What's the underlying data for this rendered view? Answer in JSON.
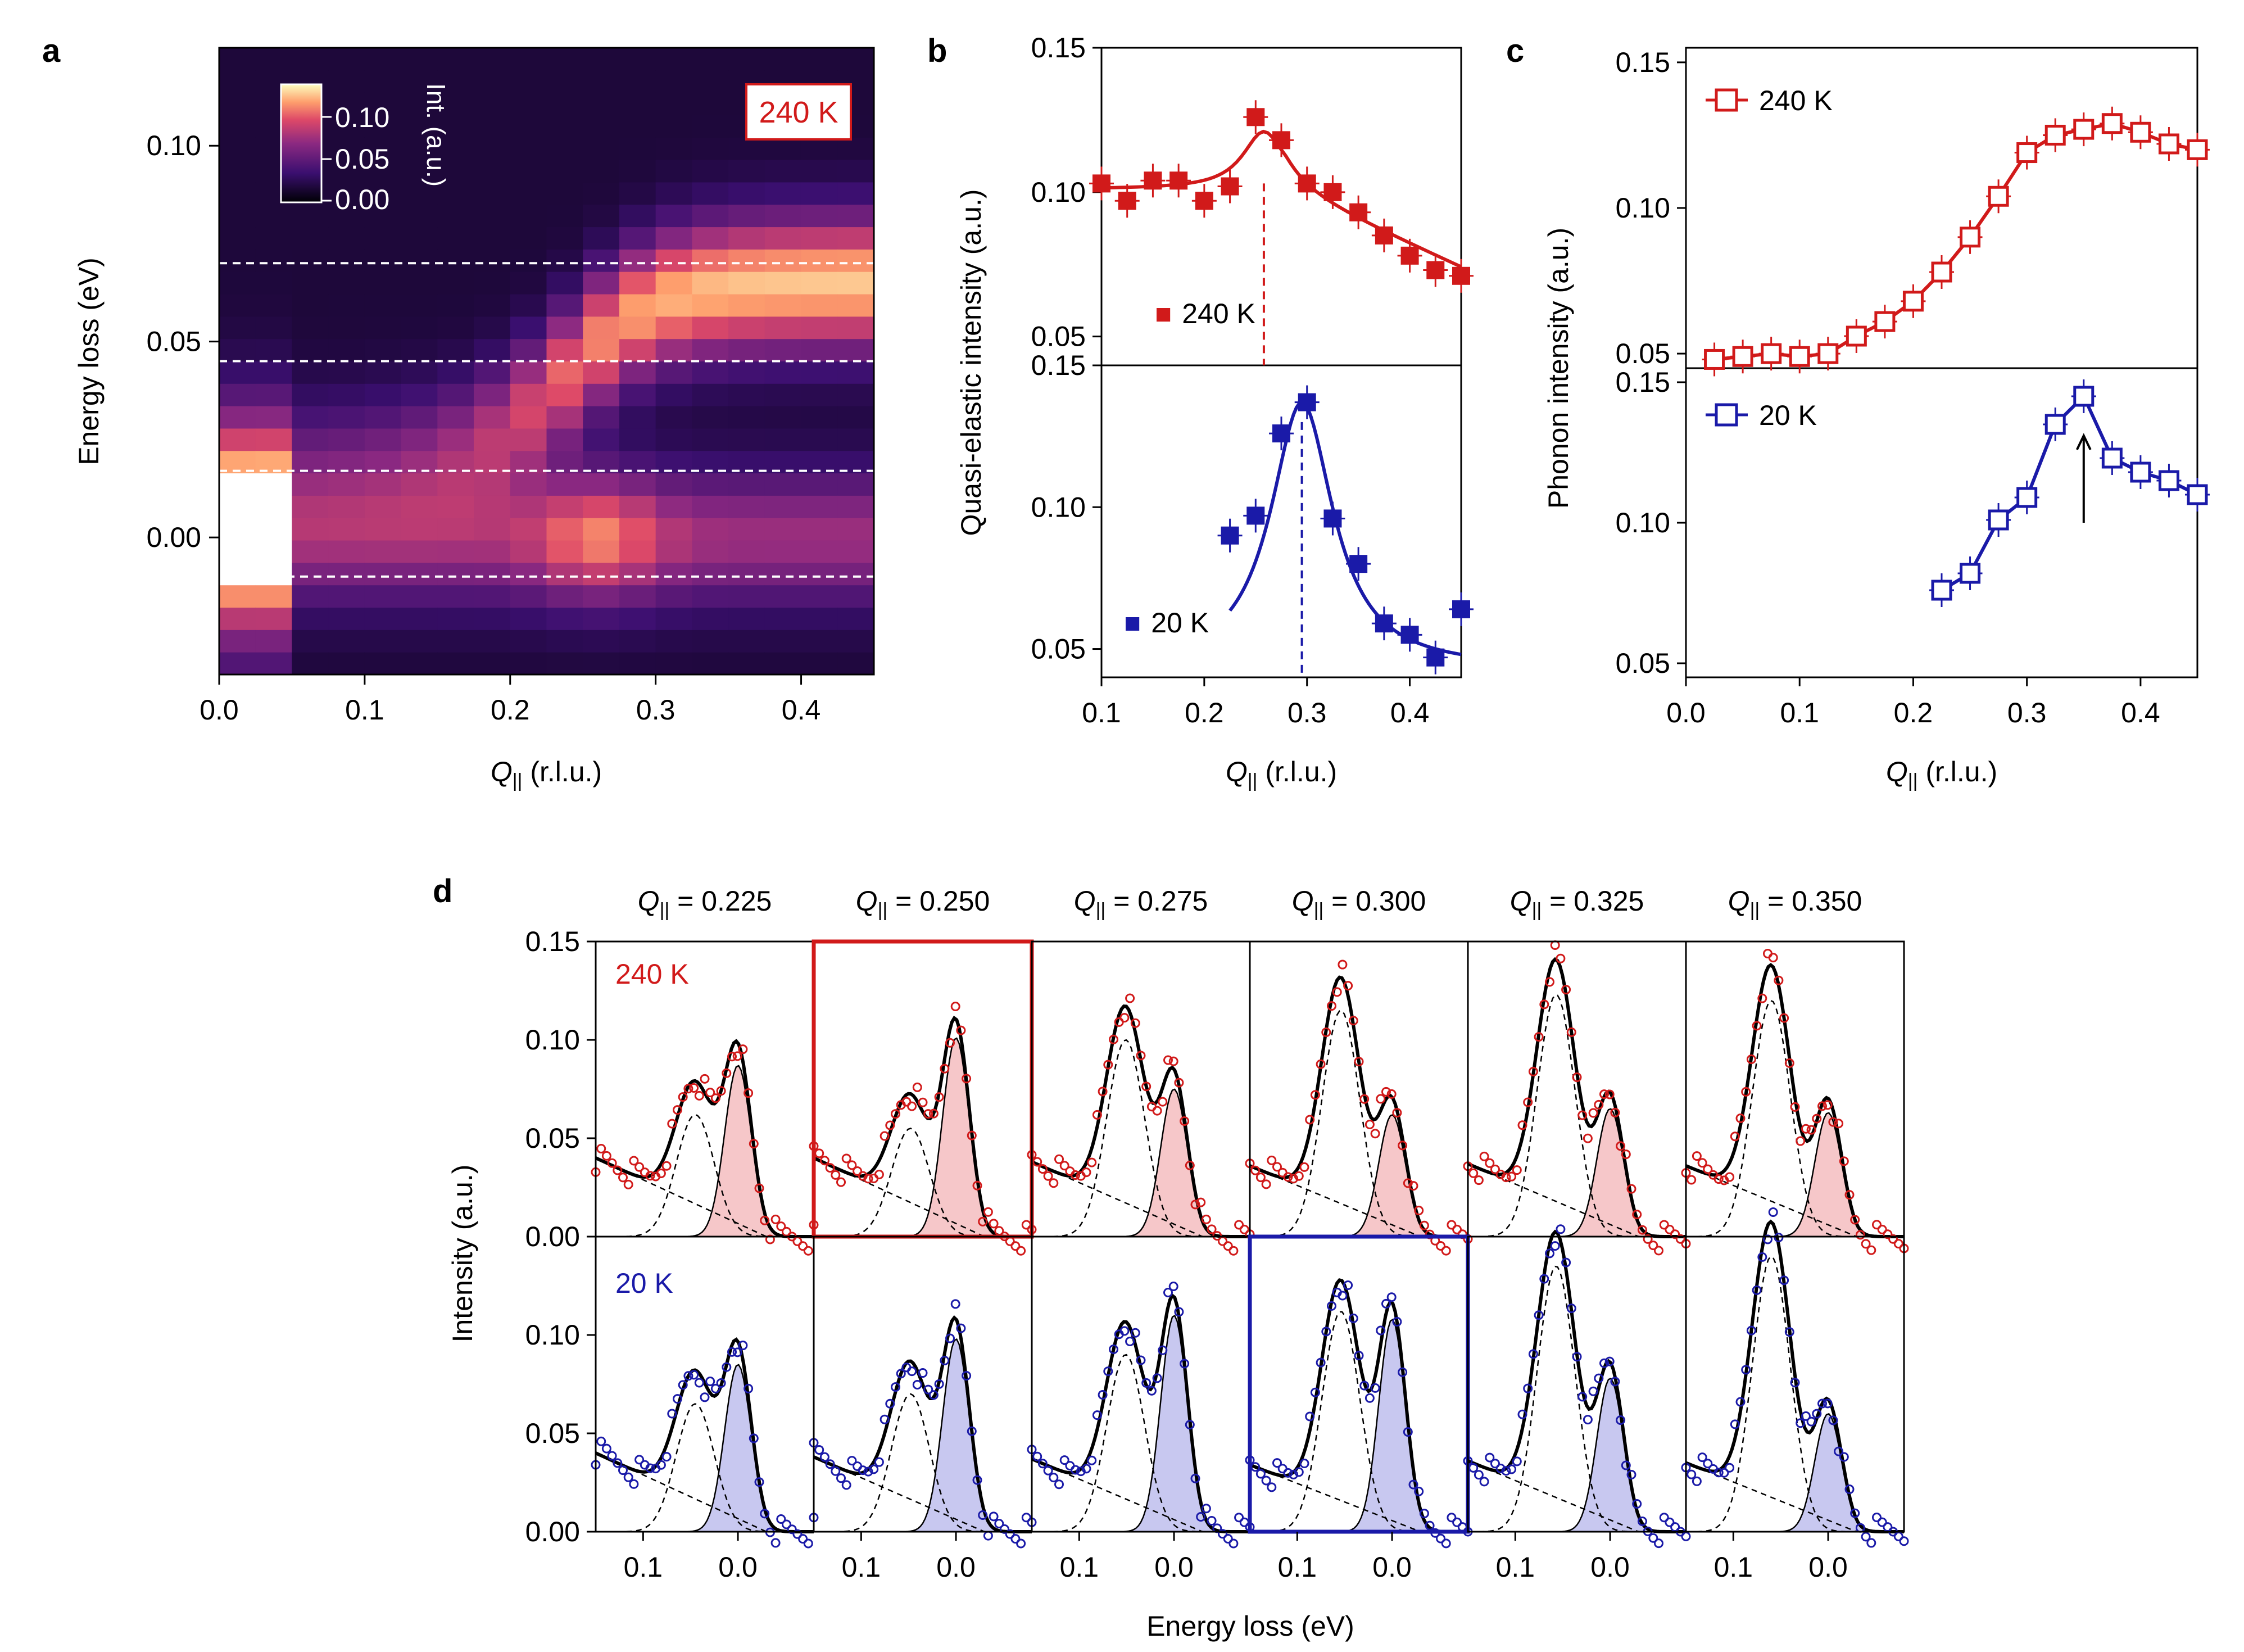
{
  "panel_labels": {
    "a": "a",
    "b": "b",
    "c": "c",
    "d": "d"
  },
  "colors": {
    "red": "#d11a1a",
    "blue": "#1a1aa8",
    "red_fill": "#f6c7c9",
    "blue_fill": "#c8c8f0",
    "black": "#000000",
    "dash_white": "#ffffff"
  },
  "panel_a": {
    "ylabel": "Energy loss (eV)",
    "xlabel_prefix": "Q",
    "xlabel_sub": "||",
    "xlabel_suffix": " (r.l.u.)",
    "badge": "240 K",
    "colorbar_label": "Int. (a.u.)",
    "colorbar_ticks": [
      "0.10",
      "0.05",
      "0.00"
    ],
    "xticks": [
      "0.0",
      "0.1",
      "0.2",
      "0.3",
      "0.4"
    ],
    "yticks": [
      "0.10",
      "0.05",
      "0.00"
    ],
    "dashed_energies": [
      0.07,
      0.045,
      0.017,
      -0.01
    ]
  },
  "panel_b": {
    "ylabel": "Quasi-elastic intensity (a.u.)",
    "xlabel_prefix": "Q",
    "xlabel_sub": "||",
    "xlabel_suffix": " (r.l.u.)",
    "legend_top": "240 K",
    "legend_bottom": "20 K",
    "xticks": [
      "0.1",
      "0.2",
      "0.3",
      "0.4"
    ],
    "yticks_top": [
      "0.15",
      "0.10",
      "0.05"
    ],
    "yticks_bottom": [
      "0.15",
      "0.10",
      "0.05"
    ]
  },
  "panel_c": {
    "ylabel": "Phonon intensity (a.u.)",
    "xlabel_prefix": "Q",
    "xlabel_sub": "||",
    "xlabel_suffix": " (r.l.u.)",
    "legend_top": "240 K",
    "legend_bottom": "20 K",
    "xticks": [
      "0.0",
      "0.1",
      "0.2",
      "0.3",
      "0.4"
    ],
    "yticks_top": [
      "0.15",
      "0.10",
      "0.05"
    ],
    "yticks_bottom": [
      "0.15",
      "0.10",
      "0.05"
    ]
  },
  "panel_d": {
    "ylabel": "Intensity (a.u.)",
    "xlabel": "Energy loss (eV)",
    "q_prefix": "Q",
    "q_sub": "||",
    "q_values": [
      " = 0.225",
      " = 0.250",
      " = 0.275",
      " = 0.300",
      " = 0.325",
      " = 0.350"
    ],
    "row_labels": [
      "240 K",
      "20 K"
    ],
    "yticks": [
      "0.15",
      "0.10",
      "0.05",
      "0.00"
    ],
    "yticks_lower": [
      "0.10",
      "0.05",
      "0.00"
    ],
    "xticks": [
      "0.1",
      "0.0"
    ]
  },
  "chart_data": [
    {
      "type": "heatmap",
      "title": "a",
      "xlabel": "Q|| (r.l.u.)",
      "ylabel": "Energy loss (eV)",
      "xlim": [
        0.0,
        0.45
      ],
      "ylim": [
        -0.035,
        0.125
      ],
      "colorbar_range": [
        0.0,
        0.12
      ],
      "annotation": "240 K"
    },
    {
      "type": "scatter",
      "title": "b",
      "xlabel": "Q|| (r.l.u.)",
      "ylabel": "Quasi-elastic intensity (a.u.)",
      "xlim": [
        0.1,
        0.45
      ],
      "series": [
        {
          "name": "240 K",
          "ylim": [
            0.04,
            0.15
          ],
          "x": [
            0.1,
            0.125,
            0.15,
            0.175,
            0.2,
            0.225,
            0.25,
            0.275,
            0.3,
            0.325,
            0.35,
            0.375,
            0.4,
            0.425,
            0.45
          ],
          "y": [
            0.103,
            0.097,
            0.104,
            0.104,
            0.097,
            0.102,
            0.126,
            0.118,
            0.103,
            0.1,
            0.093,
            0.085,
            0.078,
            0.073,
            0.071
          ],
          "peak_marker": 0.258
        },
        {
          "name": "20 K",
          "ylim": [
            0.04,
            0.15
          ],
          "x": [
            0.225,
            0.25,
            0.275,
            0.3,
            0.325,
            0.35,
            0.375,
            0.4,
            0.425,
            0.45
          ],
          "y": [
            0.09,
            0.097,
            0.126,
            0.137,
            0.096,
            0.08,
            0.059,
            0.055,
            0.047,
            0.064
          ],
          "peak_marker": 0.295
        }
      ]
    },
    {
      "type": "line",
      "title": "c",
      "xlabel": "Q|| (r.l.u.)",
      "ylabel": "Phonon intensity (a.u.)",
      "xlim": [
        0.0,
        0.45
      ],
      "series": [
        {
          "name": "240 K",
          "ylim": [
            0.045,
            0.155
          ],
          "x": [
            0.025,
            0.05,
            0.075,
            0.1,
            0.125,
            0.15,
            0.175,
            0.2,
            0.225,
            0.25,
            0.275,
            0.3,
            0.325,
            0.35,
            0.375,
            0.4,
            0.425,
            0.45
          ],
          "y": [
            0.048,
            0.049,
            0.05,
            0.049,
            0.05,
            0.056,
            0.061,
            0.068,
            0.078,
            0.09,
            0.104,
            0.119,
            0.125,
            0.127,
            0.129,
            0.126,
            0.122,
            0.12
          ]
        },
        {
          "name": "20 K",
          "ylim": [
            0.045,
            0.155
          ],
          "x": [
            0.225,
            0.25,
            0.275,
            0.3,
            0.325,
            0.35,
            0.375,
            0.4,
            0.425,
            0.45
          ],
          "y": [
            0.076,
            0.082,
            0.101,
            0.109,
            0.135,
            0.145,
            0.123,
            0.118,
            0.115,
            0.11
          ],
          "arrow_at": 0.35
        }
      ]
    },
    {
      "type": "line",
      "title": "d",
      "xlabel": "Energy loss (eV)",
      "ylabel": "Intensity (a.u.)",
      "ylim": [
        0.0,
        0.15
      ],
      "xlim_eV": [
        0.15,
        -0.08
      ],
      "series": [
        {
          "name": "240 K",
          "q": 0.225,
          "elastic": 0.087,
          "phonon": 0.062,
          "bg": 0.04
        },
        {
          "name": "240 K",
          "q": 0.25,
          "elastic": 0.101,
          "phonon": 0.055,
          "bg": 0.04
        },
        {
          "name": "240 K",
          "q": 0.275,
          "elastic": 0.075,
          "phonon": 0.1,
          "bg": 0.038
        },
        {
          "name": "240 K",
          "q": 0.3,
          "elastic": 0.062,
          "phonon": 0.115,
          "bg": 0.036
        },
        {
          "name": "240 K",
          "q": 0.325,
          "elastic": 0.065,
          "phonon": 0.123,
          "bg": 0.037
        },
        {
          "name": "240 K",
          "q": 0.35,
          "elastic": 0.063,
          "phonon": 0.12,
          "bg": 0.036
        },
        {
          "name": "20 K",
          "q": 0.225,
          "elastic": 0.085,
          "phonon": 0.065,
          "bg": 0.04
        },
        {
          "name": "20 K",
          "q": 0.25,
          "elastic": 0.098,
          "phonon": 0.07,
          "bg": 0.038
        },
        {
          "name": "20 K",
          "q": 0.275,
          "elastic": 0.11,
          "phonon": 0.09,
          "bg": 0.037
        },
        {
          "name": "20 K",
          "q": 0.3,
          "elastic": 0.108,
          "phonon": 0.112,
          "bg": 0.034
        },
        {
          "name": "20 K",
          "q": 0.325,
          "elastic": 0.078,
          "phonon": 0.135,
          "bg": 0.036
        },
        {
          "name": "20 K",
          "q": 0.35,
          "elastic": 0.06,
          "phonon": 0.14,
          "bg": 0.035
        }
      ],
      "highlighted": [
        "240 K @ 0.250",
        "20 K @ 0.300"
      ]
    }
  ]
}
